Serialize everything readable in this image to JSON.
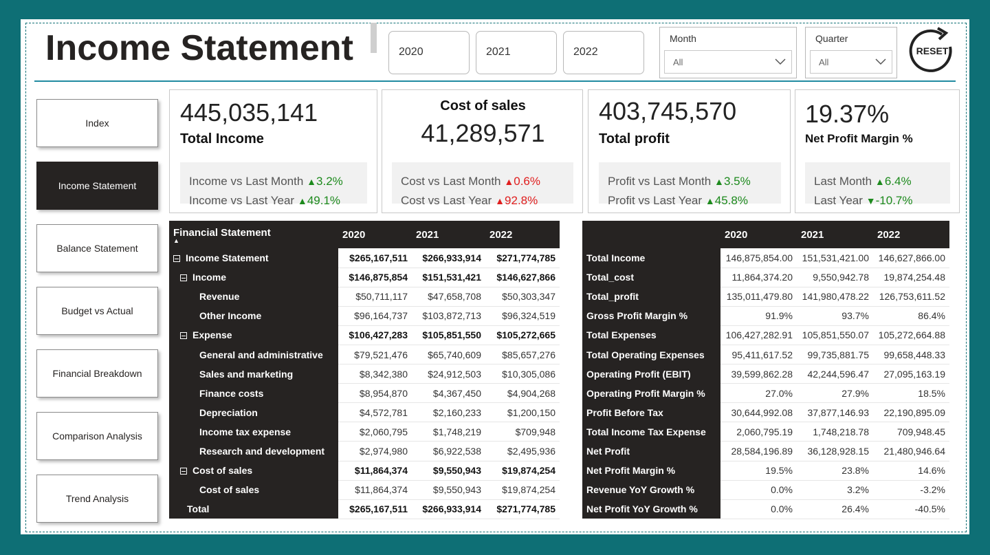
{
  "header": {
    "title": "Income Statement",
    "years": [
      "2020",
      "2021",
      "2022"
    ],
    "month": {
      "label": "Month",
      "value": "All"
    },
    "quarter": {
      "label": "Quarter",
      "value": "All"
    },
    "reset_label": "RESET"
  },
  "nav": {
    "items": [
      {
        "label": "Index"
      },
      {
        "label": "Income Statement"
      },
      {
        "label": "Balance Statement"
      },
      {
        "label": "Budget vs Actual"
      },
      {
        "label": "Financial Breakdown"
      },
      {
        "label": "Comparison Analysis"
      },
      {
        "label": "Trend Analysis"
      }
    ],
    "active": "Income Statement"
  },
  "kpis": {
    "income": {
      "value": "445,035,141",
      "label": "Total Income",
      "c1": "Income vs Last Month",
      "v1": "3.2%",
      "c2": "Income vs Last Year",
      "v2": "49.1%"
    },
    "cost": {
      "label": "Cost of sales",
      "value": "41,289,571",
      "c1": "Cost vs Last Month",
      "v1": "0.6%",
      "c2": "Cost vs Last Year",
      "v2": "92.8%"
    },
    "profit": {
      "value": "403,745,570",
      "label": "Total profit",
      "c1": "Profit vs Last Month",
      "v1": "3.5%",
      "c2": "Profit vs Last Year",
      "v2": "45.8%"
    },
    "margin": {
      "value": "19.37%",
      "label": "Net Profit Margin %",
      "c1": "Last Month",
      "v1": "6.4%",
      "c2": "Last Year",
      "v2": "-10.7%"
    }
  },
  "fin_table": {
    "headers": [
      "Financial Statement",
      "2020",
      "2021",
      "2022"
    ],
    "rows": [
      {
        "label": "Income Statement",
        "level": 0,
        "expand": true,
        "bold": true,
        "values": [
          "$265,167,511",
          "$266,933,914",
          "$271,774,785"
        ]
      },
      {
        "label": "Income",
        "level": 1,
        "expand": true,
        "bold": true,
        "values": [
          "$146,875,854",
          "$151,531,421",
          "$146,627,866"
        ]
      },
      {
        "label": "Revenue",
        "level": 2,
        "expand": false,
        "bold": false,
        "values": [
          "$50,711,117",
          "$47,658,708",
          "$50,303,347"
        ]
      },
      {
        "label": "Other Income",
        "level": 2,
        "expand": false,
        "bold": false,
        "values": [
          "$96,164,737",
          "$103,872,713",
          "$96,324,519"
        ]
      },
      {
        "label": "Expense",
        "level": 1,
        "expand": true,
        "bold": true,
        "values": [
          "$106,427,283",
          "$105,851,550",
          "$105,272,665"
        ]
      },
      {
        "label": "General and administrative",
        "level": 2,
        "expand": false,
        "bold": false,
        "values": [
          "$79,521,476",
          "$65,740,609",
          "$85,657,276"
        ]
      },
      {
        "label": "Sales and marketing",
        "level": 2,
        "expand": false,
        "bold": false,
        "values": [
          "$8,342,380",
          "$24,912,503",
          "$10,305,086"
        ]
      },
      {
        "label": "Finance costs",
        "level": 2,
        "expand": false,
        "bold": false,
        "values": [
          "$8,954,870",
          "$4,367,450",
          "$4,904,268"
        ]
      },
      {
        "label": "Depreciation",
        "level": 2,
        "expand": false,
        "bold": false,
        "values": [
          "$4,572,781",
          "$2,160,233",
          "$1,200,150"
        ]
      },
      {
        "label": "Income tax expense",
        "level": 2,
        "expand": false,
        "bold": false,
        "values": [
          "$2,060,795",
          "$1,748,219",
          "$709,948"
        ]
      },
      {
        "label": "Research and development",
        "level": 2,
        "expand": false,
        "bold": false,
        "values": [
          "$2,974,980",
          "$6,922,538",
          "$2,495,936"
        ]
      },
      {
        "label": "Cost of sales",
        "level": 1,
        "expand": true,
        "bold": true,
        "values": [
          "$11,864,374",
          "$9,550,943",
          "$19,874,254"
        ]
      },
      {
        "label": "Cost of sales",
        "level": 2,
        "expand": false,
        "bold": false,
        "values": [
          "$11,864,374",
          "$9,550,943",
          "$19,874,254"
        ]
      },
      {
        "label": "Total",
        "level": 0,
        "expand": false,
        "bold": true,
        "values": [
          "$265,167,511",
          "$266,933,914",
          "$271,774,785"
        ]
      }
    ]
  },
  "metrics_table": {
    "headers": [
      "",
      "2020",
      "2021",
      "2022"
    ],
    "rows": [
      {
        "label": "Total Income",
        "values": [
          "146,875,854.00",
          "151,531,421.00",
          "146,627,866.00"
        ]
      },
      {
        "label": "Total_cost",
        "values": [
          "11,864,374.20",
          "9,550,942.78",
          "19,874,254.48"
        ]
      },
      {
        "label": "Total_profit",
        "values": [
          "135,011,479.80",
          "141,980,478.22",
          "126,753,611.52"
        ]
      },
      {
        "label": "Gross Profit Margin %",
        "values": [
          "91.9%",
          "93.7%",
          "86.4%"
        ]
      },
      {
        "label": "Total Expenses",
        "values": [
          "106,427,282.91",
          "105,851,550.07",
          "105,272,664.88"
        ]
      },
      {
        "label": "Total Operating Expenses",
        "values": [
          "95,411,617.52",
          "99,735,881.75",
          "99,658,448.33"
        ]
      },
      {
        "label": "Operating Profit (EBIT)",
        "values": [
          "39,599,862.28",
          "42,244,596.47",
          "27,095,163.19"
        ]
      },
      {
        "label": "Operating Profit Margin %",
        "values": [
          "27.0%",
          "27.9%",
          "18.5%"
        ]
      },
      {
        "label": "Profit Before Tax",
        "values": [
          "30,644,992.08",
          "37,877,146.93",
          "22,190,895.09"
        ]
      },
      {
        "label": "Total Income Tax Expense",
        "values": [
          "2,060,795.19",
          "1,748,218.78",
          "709,948.45"
        ]
      },
      {
        "label": "Net Profit",
        "values": [
          "28,584,196.89",
          "36,128,928.15",
          "21,480,946.64"
        ]
      },
      {
        "label": "Net Profit Margin %",
        "values": [
          "19.5%",
          "23.8%",
          "14.6%"
        ]
      },
      {
        "label": "Revenue YoY Growth %",
        "values": [
          "0.0%",
          "3.2%",
          "-3.2%"
        ]
      },
      {
        "label": "Net Profit YoY Growth %",
        "values": [
          "0.0%",
          "26.4%",
          "-40.5%"
        ]
      }
    ]
  },
  "colors": {
    "background": "#0e6f75",
    "dark": "#262322",
    "positive": "#1d8a1d",
    "negative": "#e01e1e",
    "accent_line": "#1f8aa0"
  }
}
